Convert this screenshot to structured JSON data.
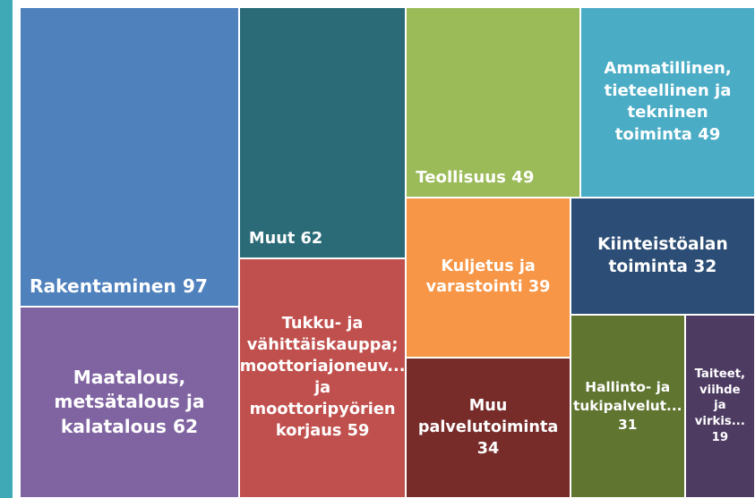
{
  "chart_data": {
    "type": "treemap",
    "categories": [
      "Rakentaminen",
      "Maatalous, metsätalous ja kalatalous",
      "Muut",
      "Tukku- ja vähittäiskauppa; moottoriajoneuv... ja moottoripyörien korjaus",
      "Teollisuus",
      "Ammatillinen, tieteellinen ja tekninen toiminta",
      "Kuljetus ja varastointi",
      "Muu palvelutoiminta",
      "Kiinteistöalan toiminta",
      "Hallinto- ja tukipalvelut...",
      "Taiteet, viihde ja virkis..."
    ],
    "values": [
      97,
      62,
      62,
      59,
      49,
      49,
      39,
      34,
      32,
      31,
      19
    ],
    "colors": [
      "#4f81bd",
      "#8064a2",
      "#2b6b78",
      "#c0504d",
      "#9bbb59",
      "#4bacc6",
      "#f79646",
      "#772c2a",
      "#2c4d75",
      "#5f7530",
      "#4d3b62"
    ]
  }
}
